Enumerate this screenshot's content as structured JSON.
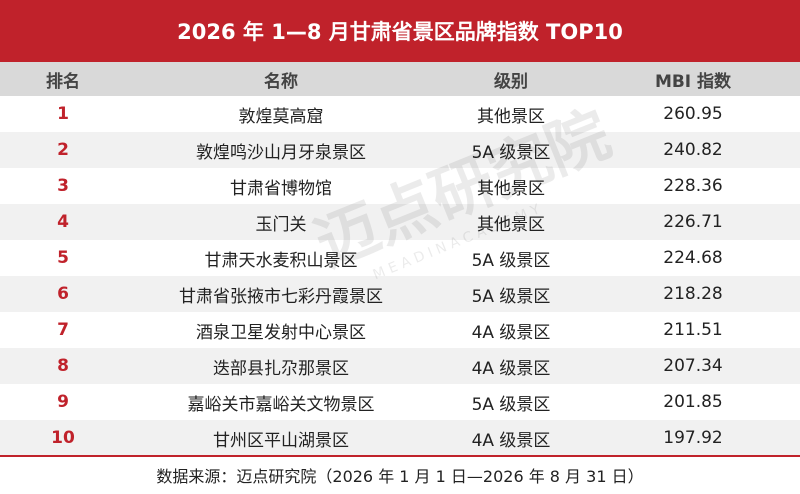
{
  "title": "2026 年 1—8 月甘肃省景区品牌指数 TOP10",
  "table": {
    "header": [
      "排名",
      "名称",
      "级别",
      "MBI 指数"
    ],
    "rows": [
      [
        1,
        "敦煌莫高窟",
        "其他景区",
        260.95
      ],
      [
        2,
        "敦煌鸣沙山月牙泉景区",
        "5A 级景区",
        240.82
      ],
      [
        3,
        "甘肃省博物馆",
        "其他景区",
        228.36
      ],
      [
        4,
        "玉门关",
        "其他景区",
        226.71
      ],
      [
        5,
        "甘肃天水麦积山景区",
        "5A 级景区",
        224.68
      ],
      [
        6,
        "甘肃省张掖市七彩丹霞景区",
        "5A 级景区",
        218.28
      ],
      [
        7,
        "酒泉卫星发射中心景区",
        "4A 级景区",
        211.51
      ],
      [
        8,
        "迭部县扎尕那景区",
        "4A 级景区",
        207.34
      ],
      [
        9,
        "嘉峪关市嘉峪关文物景区",
        "5A 级景区",
        201.85
      ],
      [
        10,
        "甘州区平山湖景区",
        "4A 级景区",
        197.92
      ]
    ]
  },
  "footer": "数据来源：迈点研究院（2026 年 1 月 1 日—2026 年 8 月 31 日）",
  "watermark": {
    "main": "迈点研究院",
    "sub": "M E A D I N   A C A D E M Y"
  }
}
